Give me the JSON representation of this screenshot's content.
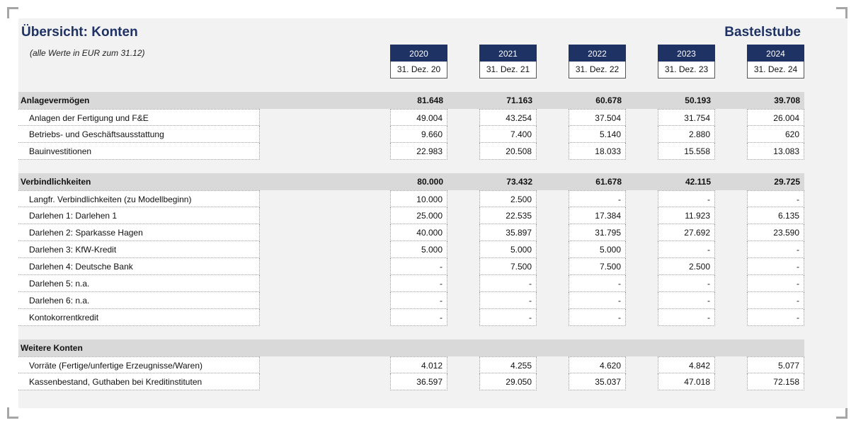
{
  "title": "Übersicht: Konten",
  "company": "Bastelstube",
  "subtitle": "(alle Werte in EUR zum 31.12)",
  "columns": [
    {
      "year": "2020",
      "date": "31. Dez. 20"
    },
    {
      "year": "2021",
      "date": "31. Dez. 21"
    },
    {
      "year": "2022",
      "date": "31. Dez. 22"
    },
    {
      "year": "2023",
      "date": "31. Dez. 23"
    },
    {
      "year": "2024",
      "date": "31. Dez. 24"
    }
  ],
  "sections": [
    {
      "label": "Anlagevermögen",
      "totals": [
        "81.648",
        "71.163",
        "60.678",
        "50.193",
        "39.708"
      ],
      "rows": [
        {
          "label": "Anlagen der Fertigung und F&E",
          "values": [
            "49.004",
            "43.254",
            "37.504",
            "31.754",
            "26.004"
          ]
        },
        {
          "label": "Betriebs- und Geschäftsausstattung",
          "values": [
            "9.660",
            "7.400",
            "5.140",
            "2.880",
            "620"
          ]
        },
        {
          "label": "Bauinvestitionen",
          "values": [
            "22.983",
            "20.508",
            "18.033",
            "15.558",
            "13.083"
          ]
        }
      ]
    },
    {
      "label": "Verbindlichkeiten",
      "totals": [
        "80.000",
        "73.432",
        "61.678",
        "42.115",
        "29.725"
      ],
      "rows": [
        {
          "label": "Langfr. Verbindlichkeiten (zu Modellbeginn)",
          "values": [
            "10.000",
            "2.500",
            "-",
            "-",
            "-"
          ]
        },
        {
          "label": "Darlehen 1: Darlehen 1",
          "values": [
            "25.000",
            "22.535",
            "17.384",
            "11.923",
            "6.135"
          ]
        },
        {
          "label": "Darlehen 2: Sparkasse Hagen",
          "values": [
            "40.000",
            "35.897",
            "31.795",
            "27.692",
            "23.590"
          ]
        },
        {
          "label": "Darlehen 3: KfW-Kredit",
          "values": [
            "5.000",
            "5.000",
            "5.000",
            "-",
            "-"
          ]
        },
        {
          "label": "Darlehen 4: Deutsche Bank",
          "values": [
            "-",
            "7.500",
            "7.500",
            "2.500",
            "-"
          ]
        },
        {
          "label": "Darlehen 5: n.a.",
          "values": [
            "-",
            "-",
            "-",
            "-",
            "-"
          ]
        },
        {
          "label": "Darlehen 6: n.a.",
          "values": [
            "-",
            "-",
            "-",
            "-",
            "-"
          ]
        },
        {
          "label": "Kontokorrentkredit",
          "values": [
            "-",
            "-",
            "-",
            "-",
            "-"
          ]
        }
      ]
    },
    {
      "label": "Weitere Konten",
      "totals": [],
      "rows": [
        {
          "label": "Vorräte (Fertige/unfertige Erzeugnisse/Waren)",
          "values": [
            "4.012",
            "4.255",
            "4.620",
            "4.842",
            "5.077"
          ]
        },
        {
          "label": "Kassenbestand, Guthaben bei Kreditinstituten",
          "values": [
            "36.597",
            "29.050",
            "35.037",
            "47.018",
            "72.158"
          ]
        }
      ]
    }
  ]
}
